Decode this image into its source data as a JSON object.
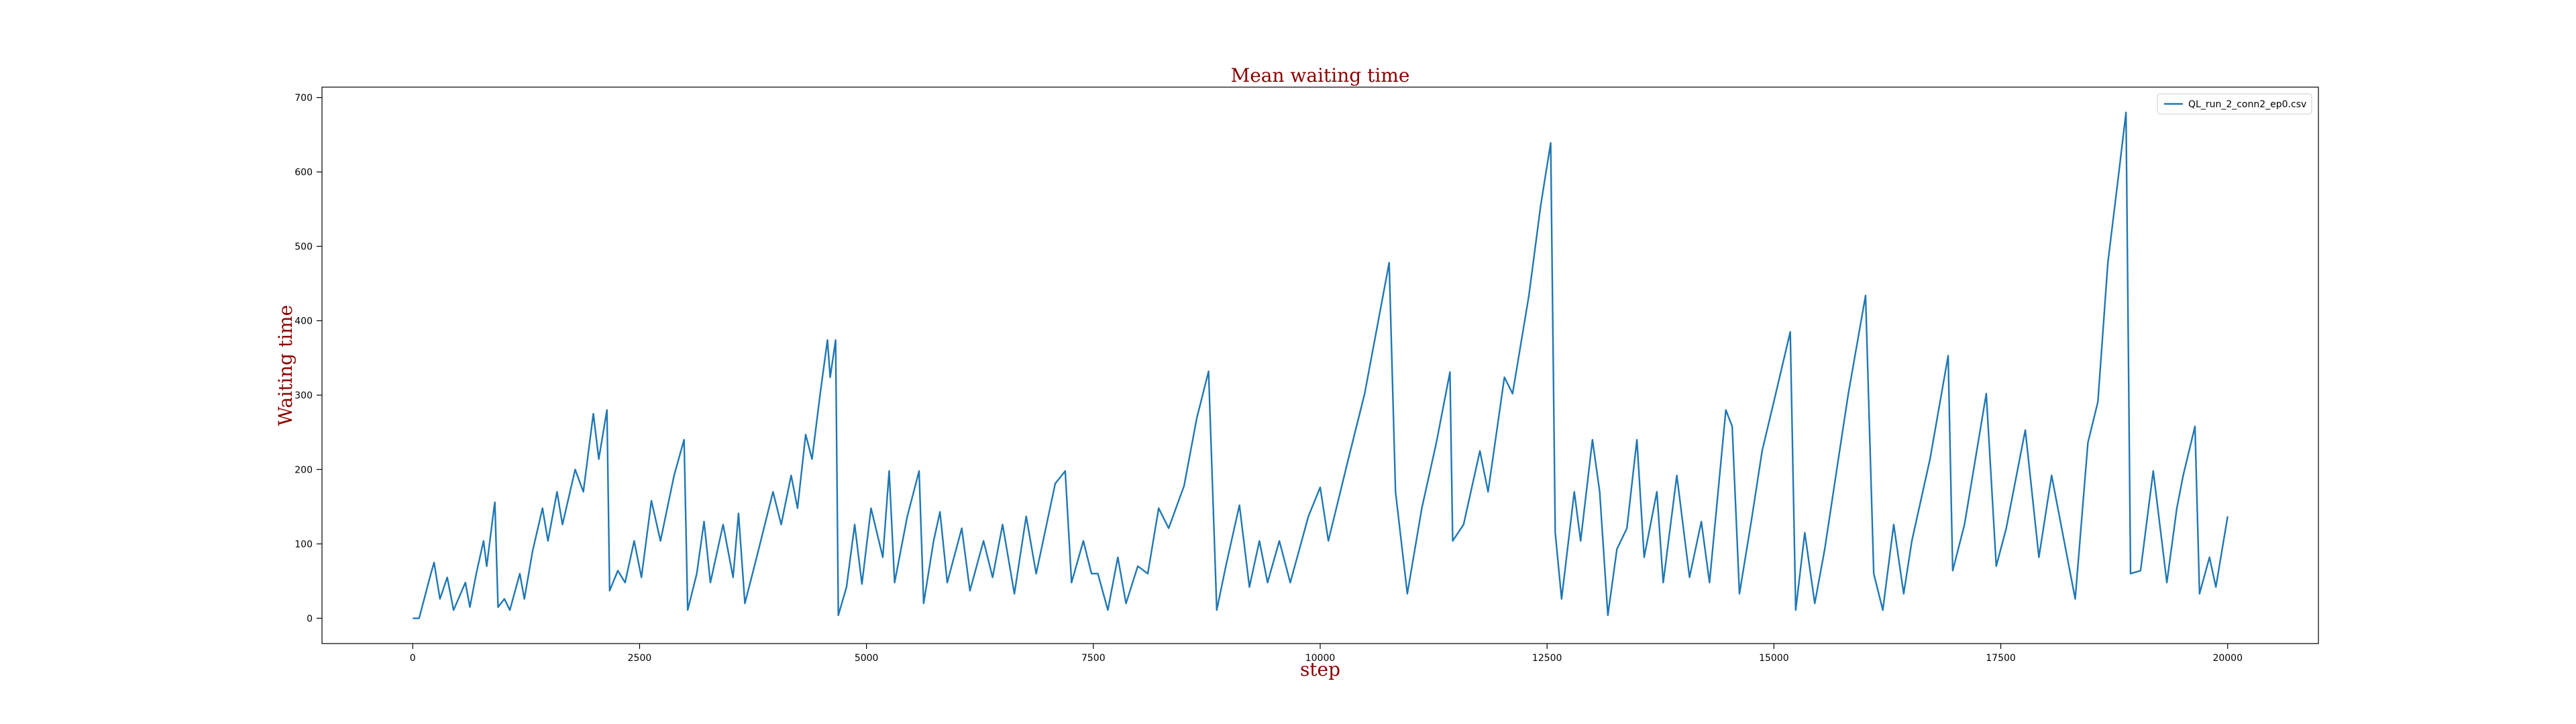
{
  "chart_data": {
    "type": "line",
    "title": "Mean waiting time",
    "x_label": "step",
    "y_label": "Waiting time",
    "x": [
      0,
      70,
      200,
      235,
      300,
      380,
      450,
      580,
      630,
      700,
      780,
      815,
      890,
      905,
      940,
      1010,
      1070,
      1180,
      1230,
      1320,
      1430,
      1490,
      1590,
      1650,
      1790,
      1880,
      1990,
      2050,
      2140,
      2170,
      2260,
      2340,
      2440,
      2520,
      2630,
      2730,
      2880,
      2990,
      3030,
      3130,
      3210,
      3280,
      3420,
      3530,
      3590,
      3660,
      3790,
      3970,
      4060,
      4170,
      4240,
      4330,
      4400,
      4490,
      4570,
      4600,
      4660,
      4690,
      4780,
      4870,
      4950,
      5050,
      5180,
      5250,
      5310,
      5450,
      5580,
      5630,
      5740,
      5810,
      5890,
      6050,
      6140,
      6290,
      6390,
      6500,
      6630,
      6760,
      6870,
      7080,
      7190,
      7260,
      7390,
      7480,
      7550,
      7660,
      7770,
      7860,
      7990,
      8100,
      8220,
      8330,
      8500,
      8640,
      8770,
      8860,
      8960,
      9110,
      9220,
      9330,
      9420,
      9550,
      9670,
      9870,
      10000,
      10090,
      10310,
      10490,
      10760,
      10830,
      10960,
      11120,
      11280,
      11430,
      11460,
      11580,
      11760,
      11850,
      12030,
      12120,
      12300,
      12430,
      12540,
      12590,
      12660,
      12800,
      12870,
      13000,
      13080,
      13170,
      13270,
      13380,
      13490,
      13570,
      13710,
      13780,
      13930,
      14070,
      14200,
      14290,
      14470,
      14540,
      14620,
      14750,
      14870,
      15020,
      15180,
      15240,
      15340,
      15450,
      15560,
      15710,
      15820,
      16010,
      16100,
      16200,
      16320,
      16430,
      16520,
      16720,
      16920,
      16970,
      17100,
      17340,
      17450,
      17560,
      17770,
      17920,
      18060,
      18320,
      18460,
      18570,
      18680,
      18790,
      18880,
      18930,
      19040,
      19180,
      19330,
      19440,
      19510,
      19640,
      19690,
      19800,
      19870,
      20000
    ],
    "series": [
      {
        "name": "QL_run_2_conn2_ep0.csv",
        "color": "#1f77b4",
        "values": [
          0,
          0,
          60,
          75,
          26,
          55,
          11,
          48,
          15,
          60,
          104,
          70,
          143,
          156,
          15,
          26,
          11,
          60,
          26,
          90,
          148,
          104,
          170,
          126,
          200,
          170,
          275,
          214,
          280,
          37,
          64,
          48,
          104,
          55,
          158,
          104,
          192,
          240,
          11,
          60,
          130,
          48,
          126,
          55,
          141,
          20,
          82,
          170,
          126,
          192,
          148,
          247,
          214,
          302,
          374,
          324,
          374,
          4,
          42,
          126,
          46,
          148,
          82,
          198,
          48,
          137,
          198,
          20,
          104,
          143,
          48,
          121,
          37,
          104,
          55,
          126,
          33,
          137,
          60,
          181,
          198,
          48,
          104,
          60,
          60,
          11,
          82,
          20,
          70,
          60,
          148,
          121,
          178,
          269,
          332,
          11,
          70,
          152,
          42,
          104,
          48,
          104,
          48,
          137,
          176,
          104,
          214,
          302,
          478,
          170,
          33,
          148,
          236,
          331,
          104,
          126,
          225,
          170,
          324,
          302,
          434,
          555,
          639,
          115,
          26,
          170,
          104,
          240,
          170,
          4,
          93,
          121,
          240,
          82,
          170,
          48,
          192,
          55,
          130,
          48,
          280,
          258,
          33,
          130,
          225,
          302,
          385,
          11,
          115,
          20,
          93,
          214,
          302,
          434,
          60,
          11,
          126,
          33,
          104,
          214,
          353,
          64,
          126,
          302,
          70,
          121,
          253,
          82,
          192,
          26,
          236,
          291,
          478,
          588,
          680,
          60,
          64,
          198,
          48,
          148,
          192,
          258,
          33,
          82,
          42,
          137
        ]
      }
    ],
    "xlim": [
      -1000,
      21000
    ],
    "ylim": [
      -34,
      714
    ],
    "xticks": [
      0,
      2500,
      5000,
      7500,
      10000,
      12500,
      15000,
      17500,
      20000
    ],
    "yticks": [
      0,
      100,
      200,
      300,
      400,
      500,
      600,
      700
    ],
    "legend": "upper right",
    "grid": false
  }
}
